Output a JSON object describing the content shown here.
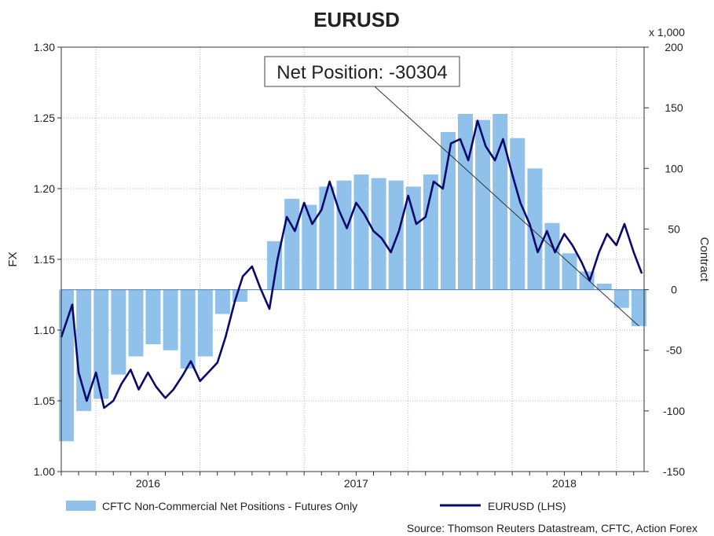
{
  "colors": {
    "bar": "#8fc1ea",
    "line": "#0a0a6e",
    "grid": "#b8b8b8",
    "axis": "#333333"
  },
  "chart_data": {
    "type": "bar",
    "title": "EURUSD",
    "left_axis": {
      "label": "FX",
      "range": [
        1.0,
        1.3
      ],
      "ticks": [
        "1.30",
        "1.25",
        "1.20",
        "1.15",
        "1.10",
        "1.05",
        "1.00"
      ]
    },
    "right_axis": {
      "label": "Contract",
      "unit": "x 1,000",
      "range": [
        -150,
        200
      ],
      "ticks": [
        "200",
        "150",
        "100",
        "50",
        "0",
        "-50",
        "-100",
        "-150"
      ]
    },
    "x_axis": {
      "range": [
        "2015-11",
        "2018-08"
      ],
      "labels": [
        "2016",
        "2017",
        "2018"
      ]
    },
    "grid": true,
    "annotation": "Net Position: -30304",
    "source": "Source: Thomson Reuters Datastream, CFTC, Action Forex",
    "series": [
      {
        "name": "CFTC Non-Commercial Net Positions - Futures Only",
        "type": "bar",
        "axis": "right",
        "points": [
          [
            "2015-11",
            -125
          ],
          [
            "2015-12",
            -100
          ],
          [
            "2016-01",
            -90
          ],
          [
            "2016-02",
            -70
          ],
          [
            "2016-03",
            -55
          ],
          [
            "2016-04",
            -45
          ],
          [
            "2016-05",
            -50
          ],
          [
            "2016-06",
            -65
          ],
          [
            "2016-07",
            -55
          ],
          [
            "2016-08",
            -20
          ],
          [
            "2016-09",
            -10
          ],
          [
            "2016-10",
            0
          ],
          [
            "2016-11",
            40
          ],
          [
            "2016-12",
            75
          ],
          [
            "2017-01",
            70
          ],
          [
            "2017-02",
            85
          ],
          [
            "2017-03",
            90
          ],
          [
            "2017-04",
            95
          ],
          [
            "2017-05",
            92
          ],
          [
            "2017-06",
            90
          ],
          [
            "2017-07",
            85
          ],
          [
            "2017-08",
            95
          ],
          [
            "2017-09",
            130
          ],
          [
            "2017-10",
            145
          ],
          [
            "2017-11",
            140
          ],
          [
            "2017-12",
            145
          ],
          [
            "2018-01",
            125
          ],
          [
            "2018-02",
            100
          ],
          [
            "2018-03",
            55
          ],
          [
            "2018-04",
            30
          ],
          [
            "2018-05",
            15
          ],
          [
            "2018-06",
            5
          ],
          [
            "2018-07",
            -15
          ],
          [
            "2018-08",
            -30
          ]
        ]
      },
      {
        "name": "EURUSD (LHS)",
        "type": "line",
        "axis": "left",
        "points": [
          [
            "2015-11",
            1.095
          ],
          [
            "2015-11-20",
            1.118
          ],
          [
            "2015-12",
            1.07
          ],
          [
            "2015-12-15",
            1.05
          ],
          [
            "2016-01",
            1.07
          ],
          [
            "2016-01-15",
            1.045
          ],
          [
            "2016-02",
            1.05
          ],
          [
            "2016-02-15",
            1.062
          ],
          [
            "2016-03",
            1.072
          ],
          [
            "2016-03-15",
            1.058
          ],
          [
            "2016-04",
            1.07
          ],
          [
            "2016-04-15",
            1.06
          ],
          [
            "2016-05",
            1.052
          ],
          [
            "2016-05-15",
            1.058
          ],
          [
            "2016-06",
            1.068
          ],
          [
            "2016-06-15",
            1.078
          ],
          [
            "2016-07",
            1.064
          ],
          [
            "2016-07-15",
            1.07
          ],
          [
            "2016-08",
            1.077
          ],
          [
            "2016-08-15",
            1.095
          ],
          [
            "2016-09",
            1.12
          ],
          [
            "2016-09-15",
            1.138
          ],
          [
            "2016-10",
            1.145
          ],
          [
            "2016-10-15",
            1.13
          ],
          [
            "2016-11",
            1.115
          ],
          [
            "2016-11-15",
            1.15
          ],
          [
            "2016-12",
            1.18
          ],
          [
            "2016-12-15",
            1.17
          ],
          [
            "2017-01",
            1.19
          ],
          [
            "2017-01-15",
            1.175
          ],
          [
            "2017-02",
            1.185
          ],
          [
            "2017-02-15",
            1.205
          ],
          [
            "2017-03",
            1.185
          ],
          [
            "2017-03-15",
            1.172
          ],
          [
            "2017-04",
            1.19
          ],
          [
            "2017-04-15",
            1.182
          ],
          [
            "2017-05",
            1.17
          ],
          [
            "2017-05-15",
            1.165
          ],
          [
            "2017-06",
            1.155
          ],
          [
            "2017-06-15",
            1.17
          ],
          [
            "2017-07",
            1.195
          ],
          [
            "2017-07-15",
            1.175
          ],
          [
            "2017-08",
            1.18
          ],
          [
            "2017-08-15",
            1.205
          ],
          [
            "2017-09",
            1.2
          ],
          [
            "2017-09-15",
            1.232
          ],
          [
            "2017-10",
            1.235
          ],
          [
            "2017-10-15",
            1.22
          ],
          [
            "2017-11",
            1.248
          ],
          [
            "2017-11-15",
            1.23
          ],
          [
            "2017-12",
            1.22
          ],
          [
            "2017-12-15",
            1.235
          ],
          [
            "2018-01",
            1.21
          ],
          [
            "2018-01-15",
            1.19
          ],
          [
            "2018-02",
            1.175
          ],
          [
            "2018-02-15",
            1.155
          ],
          [
            "2018-03",
            1.17
          ],
          [
            "2018-03-15",
            1.155
          ],
          [
            "2018-04",
            1.168
          ],
          [
            "2018-04-15",
            1.16
          ],
          [
            "2018-05",
            1.148
          ],
          [
            "2018-05-15",
            1.135
          ],
          [
            "2018-06",
            1.155
          ],
          [
            "2018-06-15",
            1.168
          ],
          [
            "2018-07",
            1.16
          ],
          [
            "2018-07-15",
            1.175
          ],
          [
            "2018-08",
            1.155
          ],
          [
            "2018-08-15",
            1.14
          ]
        ]
      }
    ]
  }
}
